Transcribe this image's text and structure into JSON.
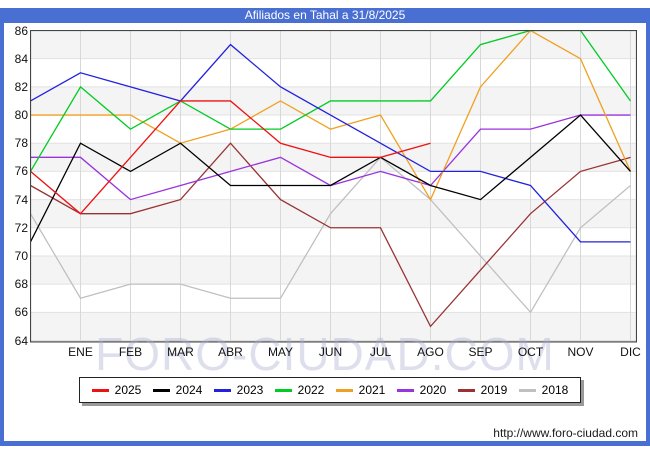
{
  "accent_color": "#4a6fd2",
  "header": {
    "title": "Afiliados en Tahal a 31/8/2025"
  },
  "watermark_text": "FORO-CIUDAD.COM",
  "footer": {
    "url_label": "http://www.foro-ciudad.com"
  },
  "chart_data": {
    "type": "line",
    "title": "Afiliados en Tahal a 31/8/2025",
    "xlabel": "",
    "ylabel": "",
    "ylim": [
      64,
      86
    ],
    "y_ticks": [
      86,
      84,
      82,
      80,
      78,
      76,
      74,
      72,
      70,
      68,
      66,
      64
    ],
    "grid": true,
    "legend_position": "bottom",
    "categories": [
      "",
      "ENE",
      "FEB",
      "MAR",
      "ABR",
      "MAY",
      "JUN",
      "JUL",
      "AGO",
      "SEP",
      "OCT",
      "NOV",
      "DIC"
    ],
    "series": [
      {
        "name": "2025",
        "color": "#ee1111",
        "values": [
          76,
          73,
          77,
          81,
          81,
          78,
          77,
          77,
          78,
          null,
          null,
          null,
          null
        ]
      },
      {
        "name": "2024",
        "color": "#000000",
        "values": [
          71,
          78,
          76,
          78,
          75,
          75,
          75,
          77,
          75,
          74,
          77,
          80,
          76
        ]
      },
      {
        "name": "2023",
        "color": "#2222dd",
        "values": [
          81,
          83,
          82,
          81,
          85,
          82,
          80,
          78,
          76,
          76,
          75,
          71,
          71
        ]
      },
      {
        "name": "2022",
        "color": "#00cc22",
        "values": [
          76,
          82,
          79,
          81,
          79,
          79,
          81,
          81,
          81,
          85,
          86,
          86,
          81
        ]
      },
      {
        "name": "2021",
        "color": "#f0a020",
        "values": [
          80,
          80,
          80,
          78,
          79,
          81,
          79,
          80,
          74,
          82,
          86,
          84,
          76
        ]
      },
      {
        "name": "2020",
        "color": "#9933dd",
        "values": [
          77,
          77,
          74,
          75,
          76,
          77,
          75,
          76,
          75,
          79,
          79,
          80,
          80
        ]
      },
      {
        "name": "2019",
        "color": "#993333",
        "values": [
          75,
          73,
          73,
          74,
          78,
          74,
          72,
          72,
          65,
          69,
          73,
          76,
          77
        ]
      },
      {
        "name": "2018",
        "color": "#c0c0c0",
        "values": [
          73,
          67,
          68,
          68,
          67,
          67,
          73,
          77,
          74,
          70,
          66,
          72,
          75
        ]
      }
    ]
  },
  "plot_style": {
    "band_color": "#f4f4f5",
    "vgrid_color": "#d8d8d8",
    "hgrid_color": "#e2e2e2",
    "border_color": "#444444"
  }
}
